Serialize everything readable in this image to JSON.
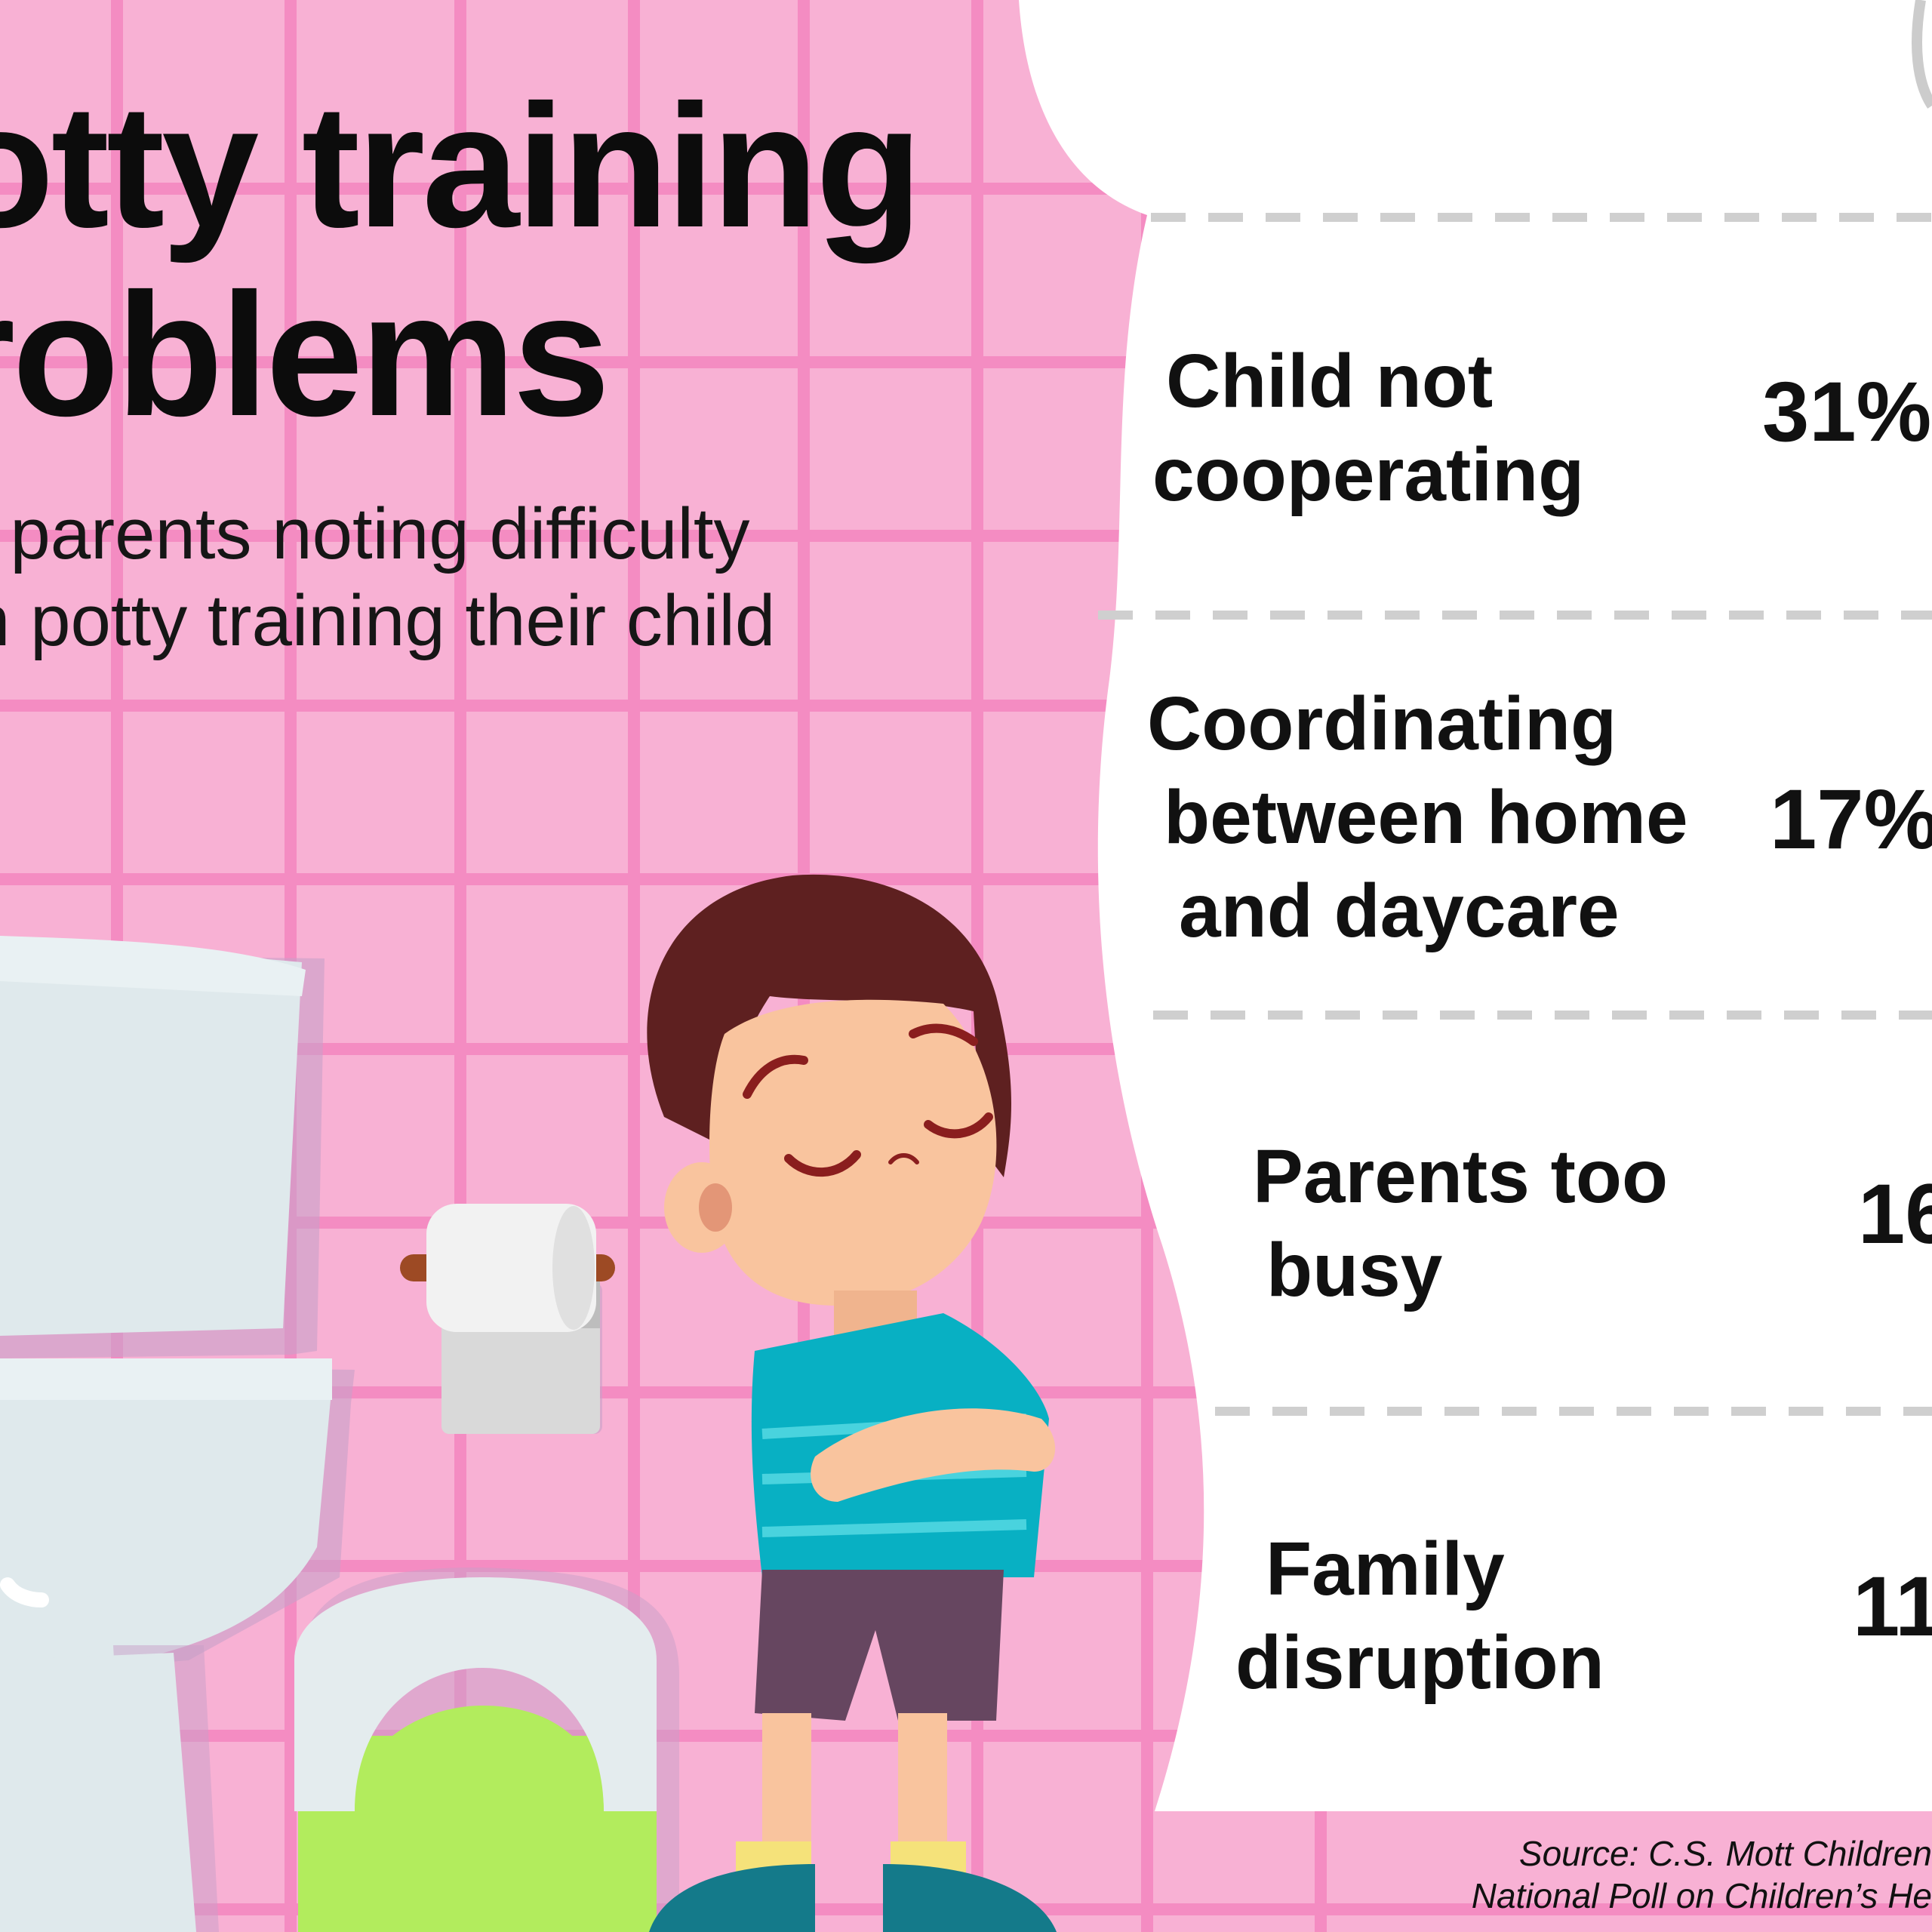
{
  "title": {
    "line1": "otty training",
    "line2": "roblems"
  },
  "subtitle": {
    "line1": "f parents noting difficulty",
    "line2": "n potty training their child"
  },
  "problems": [
    {
      "label_lines": [
        "Child not",
        "cooperating"
      ],
      "value": "31%"
    },
    {
      "label_lines": [
        "Coordinating",
        "between home",
        "and daycare"
      ],
      "value": "17%"
    },
    {
      "label_lines": [
        "Parents too",
        "busy"
      ],
      "value": "16"
    },
    {
      "label_lines": [
        "Family",
        "disruption"
      ],
      "value": "11"
    }
  ],
  "source": {
    "line1": "Source: C.S. Mott Children",
    "line2": "National Poll on Children’s He"
  },
  "colors": {
    "background": "#f8b1d4",
    "grid": "#f48cc2",
    "panel": "#ffffff",
    "divider": "#cfcfcf",
    "text": "#111111",
    "toilet": "#e4eef1",
    "potty_green": "#b2ec5d",
    "boy_shirt": "#08b0c3",
    "boy_hair": "#5e2020"
  },
  "icons": [
    "toilet-illustration",
    "toilet-paper-icon",
    "potty-chair-illustration",
    "boy-illustration"
  ]
}
